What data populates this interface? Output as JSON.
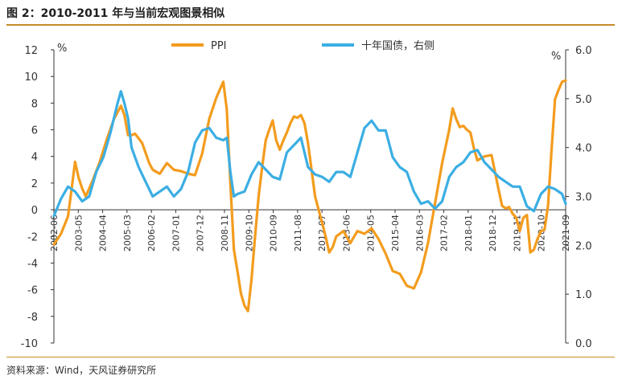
{
  "title": "图 2：2010-2011 年与当前宏观图景相似",
  "source": "资料来源：Wind，天风证券研究所",
  "colors": {
    "ppi": "#F39C1E",
    "bond": "#3BAEE3",
    "axis": "#333333",
    "rule": "#C98A2A"
  },
  "chart_data": {
    "type": "line",
    "left_unit": "%",
    "right_unit": "%",
    "legend": {
      "placement": "top-center"
    },
    "ylim_left": [
      -10,
      12
    ],
    "ylim_right": [
      0.0,
      6.0
    ],
    "left_ticks": [
      "12",
      "10",
      "8",
      "6",
      "4",
      "2",
      "0",
      "-2",
      "-4",
      "-6",
      "-8",
      "-10"
    ],
    "right_ticks": [
      "6.0",
      "5.0",
      "4.0",
      "3.0",
      "2.0",
      "1.0",
      "0.0"
    ],
    "x_labels": [
      "2002-06",
      "2003-05",
      "2004-04",
      "2005-03",
      "2006-02",
      "2007-01",
      "2007-12",
      "2008-11",
      "2009-10",
      "2010-09",
      "2011-08",
      "2012-07",
      "2013-06",
      "2014-05",
      "2015-04",
      "2016-03",
      "2017-02",
      "2018-01",
      "2018-12",
      "2019-11",
      "2020-10",
      "2021-09"
    ],
    "series": [
      {
        "name": "PPI",
        "axis": "left",
        "values": [
          [
            0,
            -2.6
          ],
          [
            2,
            -1.8
          ],
          [
            4,
            -0.5
          ],
          [
            5,
            1.5
          ],
          [
            6,
            3.6
          ],
          [
            7,
            2.4
          ],
          [
            8,
            1.6
          ],
          [
            9,
            1.0
          ],
          [
            10,
            1.6
          ],
          [
            11,
            2.2
          ],
          [
            13,
            3.6
          ],
          [
            15,
            5.3
          ],
          [
            17,
            6.8
          ],
          [
            19,
            7.8
          ],
          [
            20,
            7.1
          ],
          [
            21,
            5.6
          ],
          [
            22,
            5.6
          ],
          [
            23,
            5.7
          ],
          [
            25,
            5.0
          ],
          [
            27,
            3.5
          ],
          [
            28,
            3.0
          ],
          [
            30,
            2.7
          ],
          [
            32,
            3.5
          ],
          [
            34,
            3.0
          ],
          [
            36,
            2.9
          ],
          [
            38,
            2.7
          ],
          [
            40,
            2.6
          ],
          [
            42,
            4.2
          ],
          [
            44,
            6.8
          ],
          [
            46,
            8.4
          ],
          [
            48,
            9.6
          ],
          [
            49,
            7.5
          ],
          [
            50,
            2.0
          ],
          [
            51,
            -3.0
          ],
          [
            52,
            -4.6
          ],
          [
            53,
            -6.3
          ],
          [
            54,
            -7.2
          ],
          [
            55,
            -7.6
          ],
          [
            56,
            -5.2
          ],
          [
            57,
            -2.0
          ],
          [
            58,
            1.0
          ],
          [
            59,
            3.2
          ],
          [
            60,
            5.2
          ],
          [
            61,
            6.0
          ],
          [
            62,
            6.7
          ],
          [
            63,
            5.2
          ],
          [
            64,
            4.5
          ],
          [
            65,
            5.2
          ],
          [
            66,
            5.8
          ],
          [
            67,
            6.5
          ],
          [
            68,
            7.0
          ],
          [
            69,
            6.9
          ],
          [
            70,
            7.1
          ],
          [
            71,
            6.5
          ],
          [
            72,
            5.0
          ],
          [
            73,
            3.0
          ],
          [
            74,
            1.0
          ],
          [
            75,
            0.0
          ],
          [
            76,
            -1.0
          ],
          [
            77,
            -2.0
          ],
          [
            78,
            -3.2
          ],
          [
            79,
            -2.8
          ],
          [
            80,
            -2.0
          ],
          [
            82,
            -1.6
          ],
          [
            84,
            -2.5
          ],
          [
            86,
            -1.6
          ],
          [
            88,
            -1.8
          ],
          [
            90,
            -1.4
          ],
          [
            92,
            -2.2
          ],
          [
            94,
            -3.3
          ],
          [
            96,
            -4.6
          ],
          [
            98,
            -4.8
          ],
          [
            100,
            -5.7
          ],
          [
            102,
            -5.9
          ],
          [
            104,
            -4.7
          ],
          [
            106,
            -2.5
          ],
          [
            108,
            0.5
          ],
          [
            110,
            3.5
          ],
          [
            112,
            6.0
          ],
          [
            113,
            7.6
          ],
          [
            114,
            6.8
          ],
          [
            115,
            6.2
          ],
          [
            116,
            6.3
          ],
          [
            117,
            6.0
          ],
          [
            118,
            5.8
          ],
          [
            119,
            4.6
          ],
          [
            120,
            3.7
          ],
          [
            122,
            4.0
          ],
          [
            124,
            4.1
          ],
          [
            126,
            1.5
          ],
          [
            127,
            0.3
          ],
          [
            128,
            0.1
          ],
          [
            129,
            0.2
          ],
          [
            130,
            -0.3
          ],
          [
            131,
            -0.6
          ],
          [
            132,
            -1.6
          ],
          [
            133,
            -0.6
          ],
          [
            134,
            -0.4
          ],
          [
            135,
            -3.2
          ],
          [
            136,
            -3.0
          ],
          [
            137,
            -2.2
          ],
          [
            138,
            -1.6
          ],
          [
            139,
            -1.5
          ],
          [
            140,
            0.3
          ],
          [
            141,
            4.5
          ],
          [
            142,
            8.3
          ],
          [
            143,
            9.0
          ],
          [
            144,
            9.6
          ],
          [
            145,
            9.7
          ]
        ]
      },
      {
        "name": "十年国债，右侧",
        "axis": "right",
        "values": [
          [
            0,
            2.6
          ],
          [
            2,
            2.95
          ],
          [
            4,
            3.2
          ],
          [
            6,
            3.1
          ],
          [
            8,
            2.9
          ],
          [
            10,
            3.0
          ],
          [
            12,
            3.5
          ],
          [
            14,
            3.8
          ],
          [
            16,
            4.3
          ],
          [
            18,
            4.9
          ],
          [
            19,
            5.15
          ],
          [
            20,
            4.9
          ],
          [
            21,
            4.6
          ],
          [
            22,
            4.0
          ],
          [
            24,
            3.6
          ],
          [
            26,
            3.3
          ],
          [
            28,
            3.0
          ],
          [
            30,
            3.1
          ],
          [
            32,
            3.2
          ],
          [
            34,
            3.0
          ],
          [
            36,
            3.15
          ],
          [
            38,
            3.5
          ],
          [
            40,
            4.1
          ],
          [
            42,
            4.35
          ],
          [
            44,
            4.4
          ],
          [
            46,
            4.2
          ],
          [
            48,
            4.15
          ],
          [
            49,
            4.2
          ],
          [
            50,
            3.5
          ],
          [
            51,
            3.0
          ],
          [
            52,
            3.05
          ],
          [
            54,
            3.1
          ],
          [
            56,
            3.45
          ],
          [
            58,
            3.7
          ],
          [
            60,
            3.55
          ],
          [
            62,
            3.4
          ],
          [
            64,
            3.35
          ],
          [
            66,
            3.9
          ],
          [
            68,
            4.05
          ],
          [
            70,
            4.2
          ],
          [
            72,
            3.6
          ],
          [
            74,
            3.45
          ],
          [
            76,
            3.4
          ],
          [
            78,
            3.3
          ],
          [
            80,
            3.5
          ],
          [
            82,
            3.5
          ],
          [
            84,
            3.4
          ],
          [
            86,
            3.9
          ],
          [
            88,
            4.4
          ],
          [
            90,
            4.55
          ],
          [
            92,
            4.35
          ],
          [
            94,
            4.35
          ],
          [
            96,
            3.8
          ],
          [
            98,
            3.6
          ],
          [
            100,
            3.5
          ],
          [
            102,
            3.1
          ],
          [
            104,
            2.85
          ],
          [
            106,
            2.9
          ],
          [
            108,
            2.75
          ],
          [
            110,
            2.9
          ],
          [
            112,
            3.4
          ],
          [
            114,
            3.6
          ],
          [
            116,
            3.7
          ],
          [
            118,
            3.9
          ],
          [
            120,
            3.95
          ],
          [
            122,
            3.7
          ],
          [
            124,
            3.55
          ],
          [
            126,
            3.4
          ],
          [
            128,
            3.3
          ],
          [
            130,
            3.2
          ],
          [
            132,
            3.2
          ],
          [
            134,
            2.8
          ],
          [
            136,
            2.7
          ],
          [
            138,
            3.05
          ],
          [
            140,
            3.2
          ],
          [
            142,
            3.15
          ],
          [
            144,
            3.05
          ],
          [
            145,
            2.85
          ]
        ]
      }
    ]
  }
}
